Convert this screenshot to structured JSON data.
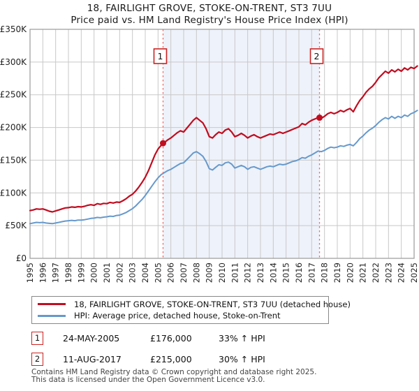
{
  "title": {
    "line1": "18, FAIRLIGHT GROVE, STOKE-ON-TRENT, ST3 7UU",
    "line2": "Price paid vs. HM Land Registry's House Price Index (HPI)"
  },
  "colors": {
    "property_line": "#c00d20",
    "hpi_line": "#6699cc",
    "marker_dash": "#f06a6a",
    "band_fill": "#eef2fa",
    "grid": "#c8c8c8",
    "frame": "#9a9a9a",
    "annotation_border": "#cc2222"
  },
  "legend": {
    "items": [
      {
        "label": "18, FAIRLIGHT GROVE, STOKE-ON-TRENT, ST3 7UU (detached house)",
        "color": "#c00d20"
      },
      {
        "label": "HPI: Average price, detached house, Stoke-on-Trent",
        "color": "#6699cc"
      }
    ]
  },
  "sales": [
    {
      "num": "1",
      "date": "24-MAY-2005",
      "price": "£176,000",
      "hpi": "33% ↑ HPI"
    },
    {
      "num": "2",
      "date": "11-AUG-2017",
      "price": "£215,000",
      "hpi": "30% ↑ HPI"
    }
  ],
  "footer": {
    "line1": "Contains HM Land Registry data © Crown copyright and database right 2025.",
    "line2": "This data is licensed under the Open Government Licence v3.0."
  },
  "chart_data": {
    "type": "line",
    "title": "Price paid vs. HM Land Registry's House Price Index (HPI)",
    "xlabel": "",
    "ylabel": "",
    "xlim": [
      1995,
      2025
    ],
    "ylim_gbp": [
      0,
      350000
    ],
    "values_unit": "GBP thousands",
    "grid": true,
    "legend_position": "bottom",
    "y_ticks": [
      {
        "v": 0,
        "label": "£0"
      },
      {
        "v": 50,
        "label": "£50K"
      },
      {
        "v": 100,
        "label": "£100K"
      },
      {
        "v": 150,
        "label": "£150K"
      },
      {
        "v": 200,
        "label": "£200K"
      },
      {
        "v": 250,
        "label": "£250K"
      },
      {
        "v": 300,
        "label": "£300K"
      },
      {
        "v": 350,
        "label": "£350K"
      }
    ],
    "x_ticks": [
      "1995",
      "1996",
      "1997",
      "1998",
      "1999",
      "2000",
      "2001",
      "2002",
      "2003",
      "2004",
      "2005",
      "2006",
      "2007",
      "2008",
      "2009",
      "2010",
      "2011",
      "2012",
      "2013",
      "2014",
      "2015",
      "2016",
      "2017",
      "2018",
      "2019",
      "2020",
      "2021",
      "2022",
      "2023",
      "2024",
      "2025"
    ],
    "x_start": 1995.0,
    "x_step": 0.25,
    "shaded_band_x": [
      2005.39,
      2017.61
    ],
    "markers": [
      {
        "label": "1",
        "x": 2005.39,
        "y": 176,
        "date": "24-MAY-2005",
        "price_gbp": 176000,
        "vs_hpi": "33% ↑ HPI"
      },
      {
        "label": "2",
        "x": 2017.61,
        "y": 215,
        "date": "11-AUG-2017",
        "price_gbp": 215000,
        "vs_hpi": "30% ↑ HPI"
      }
    ],
    "series": [
      {
        "name": "18, FAIRLIGHT GROVE, STOKE-ON-TRENT, ST3 7UU (detached house)",
        "color": "#c00d20",
        "width": 2.2,
        "values": [
          73,
          74,
          75.5,
          75,
          75.5,
          74,
          72,
          71,
          72.5,
          74,
          75.5,
          77,
          77.5,
          78.5,
          78,
          79,
          78.5,
          79.5,
          81,
          82,
          81,
          83.5,
          82.5,
          84,
          83.5,
          85.5,
          84.5,
          86,
          85.5,
          88,
          91,
          95,
          98,
          103,
          109,
          116,
          124,
          134,
          146,
          158,
          167,
          173,
          177,
          181,
          184,
          188,
          192,
          195,
          193,
          199,
          205,
          211,
          215,
          211,
          207,
          198,
          186,
          184,
          189,
          193,
          191,
          196,
          198,
          193,
          186,
          188,
          191,
          188,
          184,
          187,
          189,
          186,
          184,
          186,
          188,
          190,
          189,
          191,
          193,
          191,
          193,
          195,
          197,
          199,
          201,
          206,
          204,
          208,
          211,
          213,
          215,
          214,
          217,
          221,
          223,
          221,
          223,
          226,
          224,
          227,
          229,
          224,
          233,
          241,
          247,
          254,
          259,
          263,
          269,
          276,
          281,
          286,
          283,
          288,
          285,
          289,
          286,
          291,
          288,
          292,
          290,
          294
        ]
      },
      {
        "name": "HPI: Average price, detached house, Stoke-on-Trent",
        "color": "#6699cc",
        "width": 2,
        "values": [
          53,
          54,
          55,
          54.5,
          55,
          54,
          53.5,
          53,
          54,
          55,
          56,
          57,
          57.5,
          58,
          57.5,
          58.5,
          58.5,
          59,
          60,
          61,
          61.5,
          62.5,
          62,
          63,
          63.5,
          64.5,
          64,
          65.5,
          66,
          68,
          70,
          73,
          76,
          80,
          85,
          90,
          96,
          103,
          110,
          117,
          123,
          128,
          131,
          134,
          136,
          139,
          142,
          145,
          146,
          151,
          156,
          161,
          163,
          160,
          156,
          148,
          137,
          135,
          139,
          143,
          142,
          146,
          147,
          144,
          138,
          140,
          142,
          140,
          136,
          139,
          140,
          138,
          136,
          138,
          140,
          141,
          140,
          142,
          144,
          143,
          144,
          146,
          148,
          149,
          151,
          154,
          153,
          156,
          158,
          161,
          164,
          163,
          165,
          168,
          170,
          169,
          170,
          172,
          171,
          173,
          174,
          172,
          177,
          183,
          187,
          192,
          196,
          199,
          203,
          208,
          212,
          215,
          213,
          217,
          214,
          217,
          215,
          219,
          217,
          221,
          223,
          226
        ]
      }
    ]
  }
}
